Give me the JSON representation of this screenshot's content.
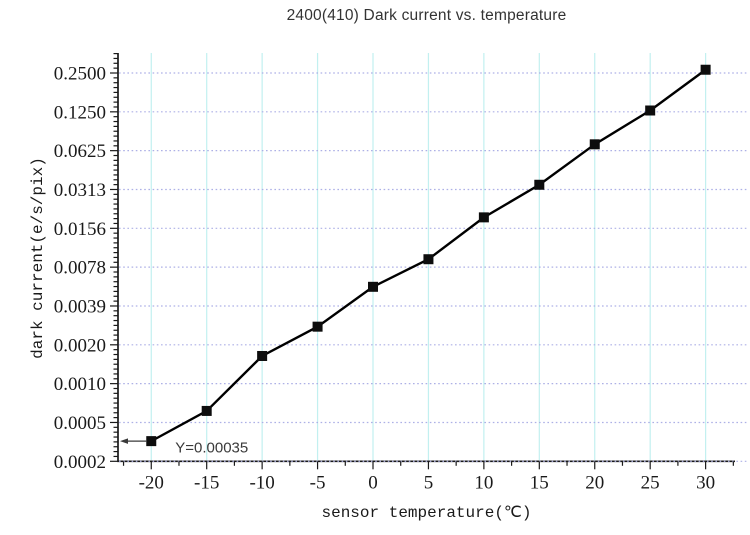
{
  "page": {
    "background": "#ffffff"
  },
  "chart_data": {
    "type": "line",
    "title": "2400(410) Dark current vs. temperature",
    "xlabel": "sensor temperature(℃)",
    "ylabel": "dark current(e/s/pix)",
    "x": [
      -20,
      -15,
      -10,
      -5,
      0,
      5,
      10,
      15,
      20,
      25,
      30
    ],
    "values": [
      0.00035,
      0.0006,
      0.0016,
      0.0027,
      0.0055,
      0.009,
      0.019,
      0.034,
      0.07,
      0.128,
      0.265
    ],
    "x_ticks": [
      -20,
      -15,
      -10,
      -5,
      0,
      5,
      10,
      15,
      20,
      25,
      30
    ],
    "y_ticks": [
      {
        "label": "0.2500",
        "value": 0.25
      },
      {
        "label": "0.1250",
        "value": 0.125
      },
      {
        "label": "0.0625",
        "value": 0.0625
      },
      {
        "label": "0.0313",
        "value": 0.03125
      },
      {
        "label": "0.0156",
        "value": 0.015625
      },
      {
        "label": "0.0078",
        "value": 0.0078125
      },
      {
        "label": "0.0039",
        "value": 0.00390625
      },
      {
        "label": "0.0020",
        "value": 0.001953125
      },
      {
        "label": "0.0010",
        "value": 0.0009765625
      },
      {
        "label": "0.0005",
        "value": 0.00048828125
      },
      {
        "label": "0.0002",
        "value": 0.000244140625
      }
    ],
    "xlim": [
      -23,
      32.65
    ],
    "ylim": [
      0.000244140625,
      0.36
    ],
    "y_scale": "log2",
    "grid": {
      "vertical": true,
      "horizontal": true,
      "horizontal_style": "dotted",
      "vertical_style": "solid"
    },
    "legend": "none",
    "marker": "filled-square",
    "annotation": {
      "text": "Y=0.00035",
      "target_x": -20,
      "target_y": 0.00035,
      "arrow_direction": "left"
    },
    "colors": {
      "line": "#000000",
      "marker": "#0d0d0d",
      "v_grid": "#c2f0f0",
      "h_grid": "#adb0e6",
      "axis": "#1a1a1a",
      "tick": "#1a1a1a",
      "tick_label": "#1a1a1a",
      "title": "#333333",
      "axis_title": "#1a1a1a",
      "annotation": "#3a3a3a"
    }
  }
}
